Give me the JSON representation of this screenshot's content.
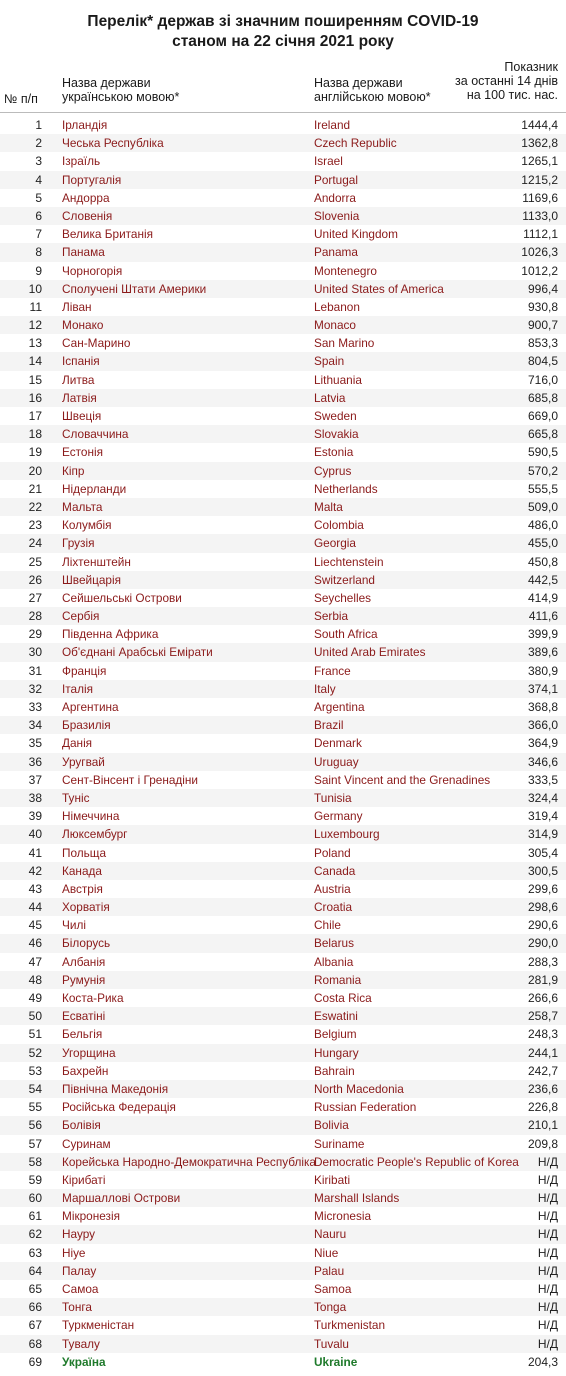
{
  "title": {
    "line1": "Перелік* держав зі значним поширенням COVID-19",
    "line2": "станом на 22 січня 2021 року"
  },
  "headers": {
    "num": "№ п/п",
    "uk_line1": "Назва держави",
    "uk_line2": "українською мовою*",
    "en_line1": "Назва держави",
    "en_line2": "англійською мовою*",
    "val_line1": "Показник",
    "val_line2": "за останні 14 днів",
    "val_line3": "на 100 тис. нас."
  },
  "colors": {
    "country_text": "#8b1a1a",
    "ukraine_text": "#1f7a2b",
    "stripe": "#f4f4f4"
  },
  "rows": [
    {
      "num": "1",
      "uk": "Ірландія",
      "en": "Ireland",
      "val": "1444,4"
    },
    {
      "num": "2",
      "uk": "Чеська Республіка",
      "en": "Czech Republic",
      "val": "1362,8"
    },
    {
      "num": "3",
      "uk": "Ізраїль",
      "en": "Israel",
      "val": "1265,1"
    },
    {
      "num": "4",
      "uk": "Португалія",
      "en": "Portugal",
      "val": "1215,2"
    },
    {
      "num": "5",
      "uk": "Андорра",
      "en": "Andorra",
      "val": "1169,6"
    },
    {
      "num": "6",
      "uk": "Словенія",
      "en": "Slovenia",
      "val": "1133,0"
    },
    {
      "num": "7",
      "uk": "Велика Британія",
      "en": "United Kingdom",
      "val": "1112,1"
    },
    {
      "num": "8",
      "uk": "Панама",
      "en": "Panama",
      "val": "1026,3"
    },
    {
      "num": "9",
      "uk": "Чорногорія",
      "en": "Montenegro",
      "val": "1012,2"
    },
    {
      "num": "10",
      "uk": "Сполучені Штати Америки",
      "en": "United States of America",
      "val": "996,4"
    },
    {
      "num": "11",
      "uk": "Ліван",
      "en": "Lebanon",
      "val": "930,8"
    },
    {
      "num": "12",
      "uk": "Монако",
      "en": "Monaco",
      "val": "900,7"
    },
    {
      "num": "13",
      "uk": "Сан-Марино",
      "en": "San Marino",
      "val": "853,3"
    },
    {
      "num": "14",
      "uk": "Іспанія",
      "en": "Spain",
      "val": "804,5"
    },
    {
      "num": "15",
      "uk": "Литва",
      "en": "Lithuania",
      "val": "716,0"
    },
    {
      "num": "16",
      "uk": "Латвія",
      "en": "Latvia",
      "val": "685,8"
    },
    {
      "num": "17",
      "uk": "Швеція",
      "en": "Sweden",
      "val": "669,0"
    },
    {
      "num": "18",
      "uk": "Словаччина",
      "en": "Slovakia",
      "val": "665,8"
    },
    {
      "num": "19",
      "uk": "Естонія",
      "en": "Estonia",
      "val": "590,5"
    },
    {
      "num": "20",
      "uk": "Кіпр",
      "en": "Cyprus",
      "val": "570,2"
    },
    {
      "num": "21",
      "uk": "Нідерланди",
      "en": "Netherlands",
      "val": "555,5"
    },
    {
      "num": "22",
      "uk": "Мальта",
      "en": "Malta",
      "val": "509,0"
    },
    {
      "num": "23",
      "uk": "Колумбія",
      "en": "Colombia",
      "val": "486,0"
    },
    {
      "num": "24",
      "uk": "Грузія",
      "en": "Georgia",
      "val": "455,0"
    },
    {
      "num": "25",
      "uk": "Ліхтенштейн",
      "en": "Liechtenstein",
      "val": "450,8"
    },
    {
      "num": "26",
      "uk": "Швейцарія",
      "en": "Switzerland",
      "val": "442,5"
    },
    {
      "num": "27",
      "uk": "Сейшельські Острови",
      "en": "Seychelles",
      "val": "414,9"
    },
    {
      "num": "28",
      "uk": "Сербія",
      "en": "Serbia",
      "val": "411,6"
    },
    {
      "num": "29",
      "uk": "Південна Африка",
      "en": "South Africa",
      "val": "399,9"
    },
    {
      "num": "30",
      "uk": "Об'єднані Арабські Емірати",
      "en": "United Arab Emirates",
      "val": "389,6"
    },
    {
      "num": "31",
      "uk": "Франція",
      "en": "France",
      "val": "380,9"
    },
    {
      "num": "32",
      "uk": "Італія",
      "en": "Italy",
      "val": "374,1"
    },
    {
      "num": "33",
      "uk": "Аргентина",
      "en": "Argentina",
      "val": "368,8"
    },
    {
      "num": "34",
      "uk": "Бразилія",
      "en": "Brazil",
      "val": "366,0"
    },
    {
      "num": "35",
      "uk": "Данія",
      "en": "Denmark",
      "val": "364,9"
    },
    {
      "num": "36",
      "uk": "Уругвай",
      "en": "Uruguay",
      "val": "346,6"
    },
    {
      "num": "37",
      "uk": "Сент-Вінсент і Гренадіни",
      "en": "Saint Vincent and the Grenadines",
      "val": "333,5"
    },
    {
      "num": "38",
      "uk": "Туніс",
      "en": "Tunisia",
      "val": "324,4"
    },
    {
      "num": "39",
      "uk": "Німеччина",
      "en": "Germany",
      "val": "319,4"
    },
    {
      "num": "40",
      "uk": "Люксембург",
      "en": "Luxembourg",
      "val": "314,9"
    },
    {
      "num": "41",
      "uk": "Польща",
      "en": "Poland",
      "val": "305,4"
    },
    {
      "num": "42",
      "uk": "Канада",
      "en": "Canada",
      "val": "300,5"
    },
    {
      "num": "43",
      "uk": "Австрія",
      "en": "Austria",
      "val": "299,6"
    },
    {
      "num": "44",
      "uk": "Хорватія",
      "en": "Croatia",
      "val": "298,6"
    },
    {
      "num": "45",
      "uk": "Чилі",
      "en": "Chile",
      "val": "290,6"
    },
    {
      "num": "46",
      "uk": "Білорусь",
      "en": "Belarus",
      "val": "290,0"
    },
    {
      "num": "47",
      "uk": "Албанія",
      "en": "Albania",
      "val": "288,3"
    },
    {
      "num": "48",
      "uk": "Румунія",
      "en": "Romania",
      "val": "281,9"
    },
    {
      "num": "49",
      "uk": "Коста-Рика",
      "en": "Costa Rica",
      "val": "266,6"
    },
    {
      "num": "50",
      "uk": "Есватіні",
      "en": "Eswatini",
      "val": "258,7"
    },
    {
      "num": "51",
      "uk": "Бельгія",
      "en": "Belgium",
      "val": "248,3"
    },
    {
      "num": "52",
      "uk": "Угорщина",
      "en": "Hungary",
      "val": "244,1"
    },
    {
      "num": "53",
      "uk": "Бахрейн",
      "en": "Bahrain",
      "val": "242,7"
    },
    {
      "num": "54",
      "uk": "Північна Македонія",
      "en": "North Macedonia",
      "val": "236,6"
    },
    {
      "num": "55",
      "uk": "Російська Федерація",
      "en": "Russian Federation",
      "val": "226,8"
    },
    {
      "num": "56",
      "uk": "Болівія",
      "en": "Bolivia",
      "val": "210,1"
    },
    {
      "num": "57",
      "uk": "Суринам",
      "en": "Suriname",
      "val": "209,8"
    },
    {
      "num": "58",
      "uk": "Корейська Народно-Демократична Республіка",
      "en": "Democratic People's Republic of Korea",
      "val": "Н/Д"
    },
    {
      "num": "59",
      "uk": "Кірибаті",
      "en": "Kiribati",
      "val": "Н/Д"
    },
    {
      "num": "60",
      "uk": "Маршаллові Острови",
      "en": "Marshall Islands",
      "val": "Н/Д"
    },
    {
      "num": "61",
      "uk": "Мікронезія",
      "en": "Micronesia",
      "val": "Н/Д"
    },
    {
      "num": "62",
      "uk": "Науру",
      "en": "Nauru",
      "val": "Н/Д"
    },
    {
      "num": "63",
      "uk": "Ніуе",
      "en": "Niue",
      "val": "Н/Д"
    },
    {
      "num": "64",
      "uk": "Палау",
      "en": "Palau",
      "val": "Н/Д"
    },
    {
      "num": "65",
      "uk": "Самоа",
      "en": "Samoa",
      "val": "Н/Д"
    },
    {
      "num": "66",
      "uk": "Тонга",
      "en": "Tonga",
      "val": "Н/Д"
    },
    {
      "num": "67",
      "uk": "Туркменістан",
      "en": "Turkmenistan",
      "val": "Н/Д"
    },
    {
      "num": "68",
      "uk": "Тувалу",
      "en": "Tuvalu",
      "val": "Н/Д"
    },
    {
      "num": "69",
      "uk": "Україна",
      "en": "Ukraine",
      "val": "204,3",
      "highlight": true
    }
  ]
}
